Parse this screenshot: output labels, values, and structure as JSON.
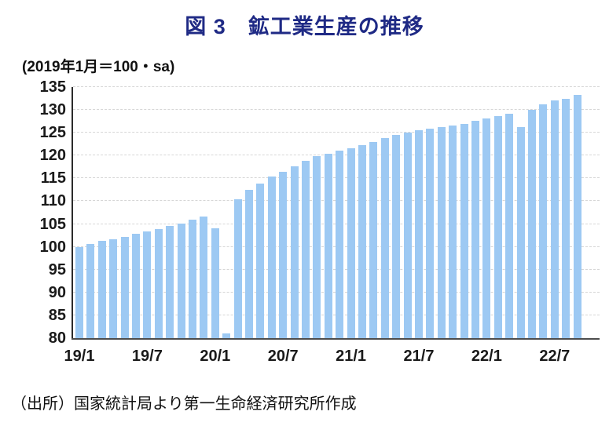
{
  "title": {
    "text": "図 3　鉱工業生産の推移"
  },
  "axis_note": {
    "text": "(2019年1月＝100・sa)"
  },
  "source_note": {
    "text": "（出所）国家統計局より第一生命経済研究所作成"
  },
  "colors": {
    "title": "#1F2A85",
    "bar": "#9DC9F3",
    "grid": "#D6D6D6",
    "axis": "#3B3B3B",
    "tick_text": "#1A1A1A"
  },
  "chart_data": {
    "type": "bar",
    "title": "図 3　鉱工業生産の推移",
    "unit_note": "(2019年1月＝100・sa)",
    "source": "（出所）国家統計局より第一生命経済研究所作成",
    "x": [
      "19/1",
      "19/2",
      "19/3",
      "19/4",
      "19/5",
      "19/6",
      "19/7",
      "19/8",
      "19/9",
      "19/10",
      "19/11",
      "19/12",
      "20/1",
      "20/2",
      "20/3",
      "20/4",
      "20/5",
      "20/6",
      "20/7",
      "20/8",
      "20/9",
      "20/10",
      "20/11",
      "20/12",
      "21/1",
      "21/2",
      "21/3",
      "21/4",
      "21/5",
      "21/6",
      "21/7",
      "21/8",
      "21/9",
      "21/10",
      "21/11",
      "21/12",
      "22/1",
      "22/2",
      "22/3",
      "22/4",
      "22/5",
      "22/6",
      "22/7",
      "22/8",
      "22/9"
    ],
    "values": [
      100.0,
      100.6,
      101.3,
      101.6,
      102.2,
      102.9,
      103.4,
      103.9,
      104.6,
      105.1,
      105.9,
      106.6,
      104.1,
      81.0,
      110.5,
      112.5,
      113.9,
      115.4,
      116.4,
      117.7,
      118.9,
      119.8,
      120.4,
      121.0,
      121.6,
      122.3,
      123.0,
      123.8,
      124.5,
      125.0,
      125.6,
      125.9,
      126.2,
      126.5,
      126.9,
      127.6,
      128.1,
      128.7,
      129.2,
      126.2,
      130.1,
      131.3,
      132.1,
      132.5,
      133.3
    ],
    "xticks_shown": [
      "19/1",
      "19/7",
      "20/1",
      "20/7",
      "21/1",
      "21/7",
      "22/1",
      "22/7"
    ],
    "ylim": [
      80,
      135
    ],
    "yticks": [
      80,
      85,
      90,
      95,
      100,
      105,
      110,
      115,
      120,
      125,
      130,
      135
    ],
    "grid": "horizontal-dashed",
    "legend": "none",
    "bar_color": "#9DC9F3"
  }
}
